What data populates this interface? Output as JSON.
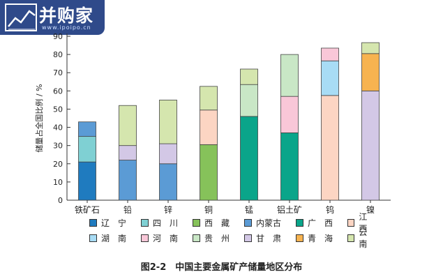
{
  "logo": {
    "text": "并购家",
    "sub": "www.ipoipo.cn"
  },
  "caption": "图2-2　中国主要金属矿产储量地区分布",
  "colors": {
    "辽宁": "#1f7bbf",
    "四川": "#7fd0d3",
    "西藏": "#86c25a",
    "内蒙古": "#5b9bd5",
    "广西": "#0aa58a",
    "江西": "#fcd5c3",
    "湖南": "#a8dcf5",
    "河南": "#f9c7d8",
    "贵州": "#c9e7c6",
    "甘肃": "#d3c8e6",
    "青海": "#f7b350",
    "云南": "#d5e6ae"
  },
  "chart_data": {
    "type": "bar",
    "stacked": true,
    "ylabel": "储量占全国比例 / %",
    "ylim": [
      0,
      90
    ],
    "yticks": [
      0,
      10,
      20,
      30,
      40,
      50,
      60,
      70,
      80,
      90
    ],
    "grid": false,
    "categories": [
      "铁矿石",
      "铅",
      "锌",
      "铜",
      "锰",
      "铝土矿",
      "钨",
      "镍"
    ],
    "series": [
      {
        "name": "辽宁",
        "values": [
          21,
          0,
          0,
          0,
          0,
          0,
          0,
          0
        ]
      },
      {
        "name": "四川",
        "values": [
          14,
          0,
          0,
          0,
          0,
          0,
          0,
          0
        ]
      },
      {
        "name": "西藏",
        "values": [
          0,
          0,
          0,
          30.5,
          0,
          0,
          0,
          0
        ]
      },
      {
        "name": "内蒙古",
        "values": [
          8,
          22,
          20,
          0,
          0,
          0,
          0,
          0
        ]
      },
      {
        "name": "广西",
        "values": [
          0,
          0,
          0,
          0,
          46,
          37,
          0,
          0
        ]
      },
      {
        "name": "江西",
        "values": [
          0,
          0,
          0,
          19,
          0,
          0,
          57.5,
          0
        ]
      },
      {
        "name": "湖南",
        "values": [
          0,
          0,
          0,
          0,
          0,
          0,
          19,
          0
        ]
      },
      {
        "name": "河南",
        "values": [
          0,
          0,
          0,
          0,
          0,
          20,
          7,
          0
        ]
      },
      {
        "name": "贵州",
        "values": [
          0,
          0,
          0,
          0,
          17.5,
          23,
          0,
          0
        ]
      },
      {
        "name": "甘肃",
        "values": [
          0,
          8,
          11,
          0,
          0,
          0,
          0,
          60
        ]
      },
      {
        "name": "青海",
        "values": [
          0,
          0,
          0,
          0,
          0,
          0,
          0,
          20.5
        ]
      },
      {
        "name": "云南",
        "values": [
          0,
          22,
          24,
          13,
          8.5,
          0,
          0,
          6
        ]
      }
    ],
    "stack_order": [
      [
        "辽宁",
        "四川",
        "内蒙古"
      ],
      [
        "内蒙古",
        "甘肃",
        "云南"
      ],
      [
        "内蒙古",
        "甘肃",
        "云南"
      ],
      [
        "西藏",
        "江西",
        "云南"
      ],
      [
        "广西",
        "贵州",
        "云南"
      ],
      [
        "广西",
        "河南",
        "贵州"
      ],
      [
        "江西",
        "湖南",
        "河南"
      ],
      [
        "甘肃",
        "青海",
        "云南"
      ]
    ],
    "legend": {
      "placement": "bottom",
      "entries": [
        "辽　宁",
        "四　川",
        "西　藏",
        "内蒙古",
        "广　西",
        "江　西",
        "湖　南",
        "河　南",
        "贵　州",
        "甘　肃",
        "青　海",
        "云　南"
      ],
      "keys": [
        "辽宁",
        "四川",
        "西藏",
        "内蒙古",
        "广西",
        "江西",
        "湖南",
        "河南",
        "贵州",
        "甘肃",
        "青海",
        "云南"
      ]
    }
  }
}
